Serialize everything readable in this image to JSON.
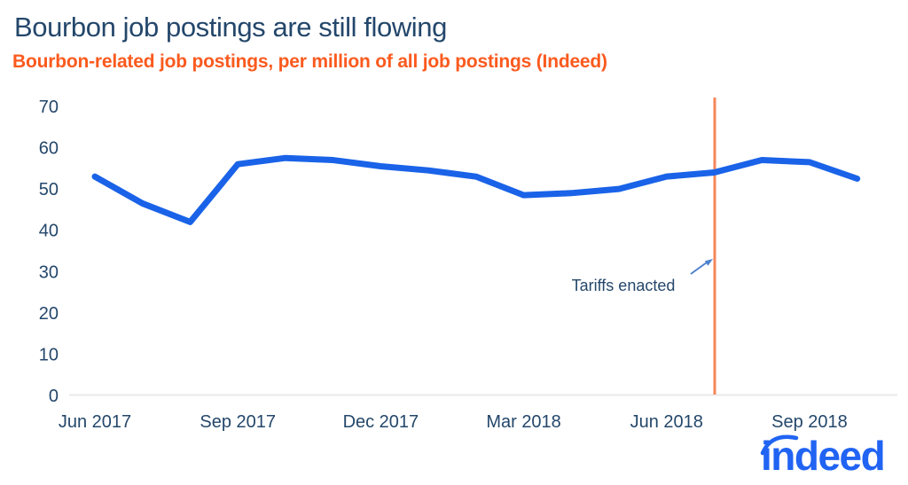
{
  "header": {
    "title": "Bourbon job postings are still flowing",
    "subtitle": "Bourbon-related job postings, per million of all job postings (Indeed)"
  },
  "logo": {
    "brand": "indeed"
  },
  "colors": {
    "navy_text": "#24476B",
    "subtitle_orange": "#FB5A1E",
    "line_blue": "#1A63E8",
    "marker_orange": "#F6865C",
    "arrow_blue": "#4E82CE",
    "axis_gray": "#EAEAEA",
    "logo_blue": "#2164F3"
  },
  "chart_data": {
    "type": "line",
    "title": "Bourbon job postings are still flowing",
    "subtitle": "Bourbon-related job postings, per million of all job postings (Indeed)",
    "x": [
      "Jun 2017",
      "Jul 2017",
      "Aug 2017",
      "Sep 2017",
      "Oct 2017",
      "Nov 2017",
      "Dec 2017",
      "Jan 2018",
      "Feb 2018",
      "Mar 2018",
      "Apr 2018",
      "May 2018",
      "Jun 2018",
      "Jul 2018",
      "Aug 2018",
      "Sep 2018",
      "Oct 2018"
    ],
    "series": [
      {
        "name": "Bourbon-related job postings per million",
        "values": [
          53,
          46.5,
          42,
          56,
          57.5,
          57,
          55.5,
          54.5,
          53,
          48.5,
          49,
          50,
          53,
          54,
          57,
          56.5,
          52.5
        ]
      }
    ],
    "xticks": [
      "Jun 2017",
      "Sep 2017",
      "Dec 2017",
      "Mar 2018",
      "Jun 2018",
      "Sep 2018"
    ],
    "xtick_indices": [
      0,
      3,
      6,
      9,
      12,
      15
    ],
    "yticks": [
      0,
      10,
      20,
      30,
      40,
      50,
      60,
      70
    ],
    "ylim": [
      0,
      70
    ],
    "grid": false,
    "legend": "none",
    "annotation": {
      "label": "Tariffs enacted",
      "x_index": 13
    }
  }
}
